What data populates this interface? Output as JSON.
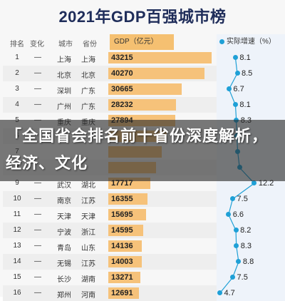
{
  "title": "2021年GDP百强城市榜",
  "headers": {
    "rank": "排名",
    "change": "变化",
    "city": "城市",
    "province": "省份",
    "gdp": "GDP（亿元）",
    "growth": "实际增速（%）"
  },
  "colors": {
    "bar": "#f6c27a",
    "dot": "#1fa0d6",
    "title": "#1f2d5a"
  },
  "rows": [
    {
      "rank": "1",
      "change": "—",
      "city": "上海",
      "province": "上海",
      "gdp": "43215",
      "gdp_value": 43215,
      "growth": "8.1",
      "growth_value": 8.1
    },
    {
      "rank": "2",
      "change": "—",
      "city": "北京",
      "province": "北京",
      "gdp": "40270",
      "gdp_value": 40270,
      "growth": "8.5",
      "growth_value": 8.5
    },
    {
      "rank": "3",
      "change": "—",
      "city": "深圳",
      "province": "广东",
      "gdp": "30665",
      "gdp_value": 30665,
      "growth": "6.7",
      "growth_value": 6.7
    },
    {
      "rank": "4",
      "change": "—",
      "city": "广州",
      "province": "广东",
      "gdp": "28232",
      "gdp_value": 28232,
      "growth": "8.1",
      "growth_value": 8.1
    },
    {
      "rank": "5",
      "change": "—",
      "city": "重庆",
      "province": "重庆",
      "gdp": "27894",
      "gdp_value": 27894,
      "growth": "8.3",
      "growth_value": 8.3
    },
    {
      "rank": "6",
      "change": "",
      "city": "",
      "province": "",
      "gdp": "",
      "gdp_value": 24500,
      "growth": "",
      "growth_value": 8.4
    },
    {
      "rank": "7",
      "change": "",
      "city": "",
      "province": "",
      "gdp": "",
      "gdp_value": 22500,
      "growth": "",
      "growth_value": 8.6
    },
    {
      "rank": "8",
      "change": "",
      "city": "",
      "province": "",
      "gdp": "",
      "gdp_value": 19917,
      "growth": "",
      "growth_value": 9.0
    },
    {
      "rank": "9",
      "change": "—",
      "city": "武汉",
      "province": "湖北",
      "gdp": "17717",
      "gdp_value": 17717,
      "growth": "12.2",
      "growth_value": 12.2
    },
    {
      "rank": "10",
      "change": "—",
      "city": "南京",
      "province": "江苏",
      "gdp": "16355",
      "gdp_value": 16355,
      "growth": "7.5",
      "growth_value": 7.5
    },
    {
      "rank": "11",
      "change": "—",
      "city": "天津",
      "province": "天津",
      "gdp": "15695",
      "gdp_value": 15695,
      "growth": "6.6",
      "growth_value": 6.6
    },
    {
      "rank": "12",
      "change": "—",
      "city": "宁波",
      "province": "浙江",
      "gdp": "14595",
      "gdp_value": 14595,
      "growth": "8.2",
      "growth_value": 8.2
    },
    {
      "rank": "13",
      "change": "—",
      "city": "青岛",
      "province": "山东",
      "gdp": "14136",
      "gdp_value": 14136,
      "growth": "8.3",
      "growth_value": 8.3
    },
    {
      "rank": "14",
      "change": "—",
      "city": "无锡",
      "province": "江苏",
      "gdp": "14003",
      "gdp_value": 14003,
      "growth": "8.8",
      "growth_value": 8.8
    },
    {
      "rank": "15",
      "change": "—",
      "city": "长沙",
      "province": "湖南",
      "gdp": "13271",
      "gdp_value": 13271,
      "growth": "7.5",
      "growth_value": 7.5
    },
    {
      "rank": "16",
      "change": "—",
      "city": "郑州",
      "province": "河南",
      "gdp": "12691",
      "gdp_value": 12691,
      "growth": "4.7",
      "growth_value": 4.7
    }
  ],
  "banner": {
    "text": "「全国省会排名前十省份深度解析，经济、文化"
  }
}
